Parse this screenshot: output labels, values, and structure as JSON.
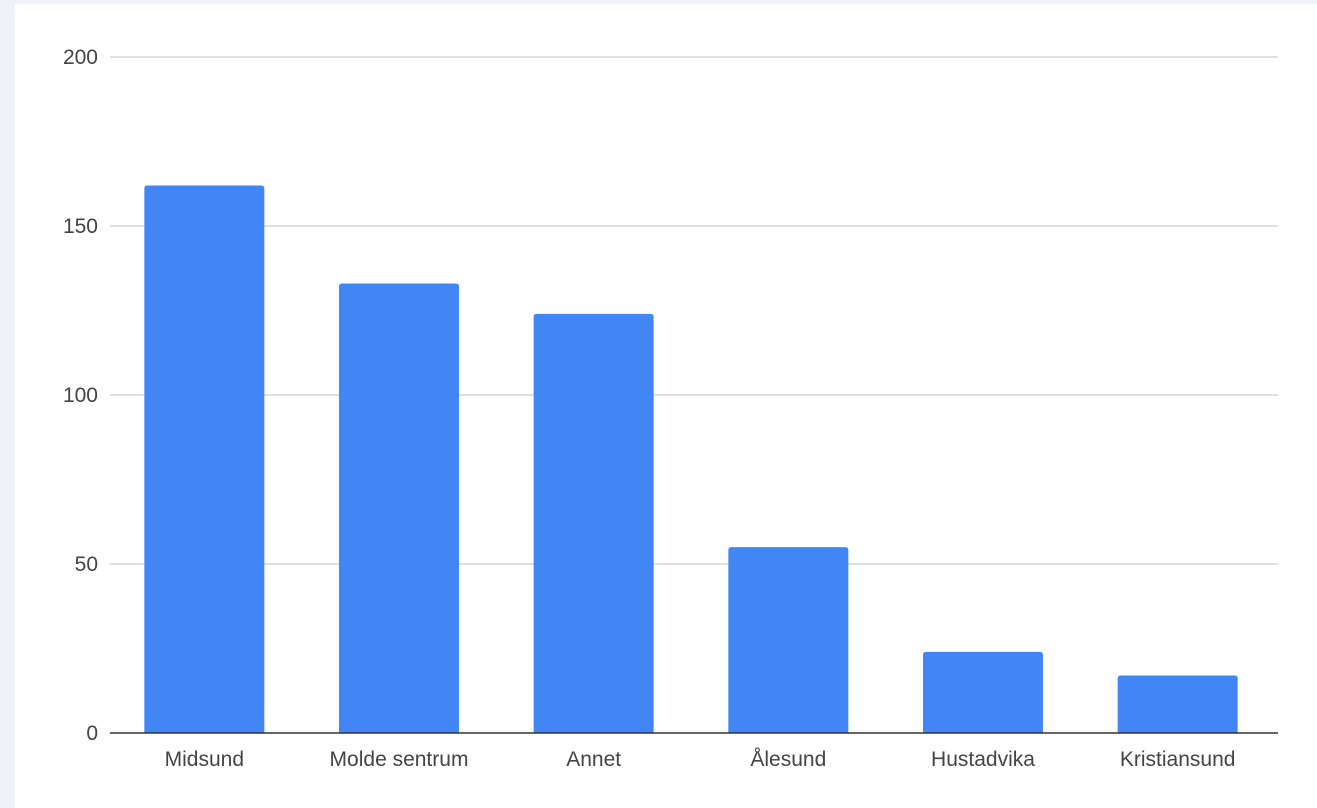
{
  "colors": {
    "bar": "#4285f4",
    "grid": "#cccccc",
    "axis": "#333333",
    "label": "#444444",
    "background": "#ffffff",
    "page_background": "#eef2f6"
  },
  "chart_data": {
    "type": "bar",
    "title": "",
    "xlabel": "",
    "ylabel": "",
    "categories": [
      "Midsund",
      "Molde sentrum",
      "Annet",
      "Ålesund",
      "Hustadvika",
      "Kristiansund"
    ],
    "values": [
      162,
      133,
      124,
      55,
      24,
      17
    ],
    "ylim": [
      0,
      200
    ],
    "yticks": [
      0,
      50,
      100,
      150,
      200
    ],
    "ytick_labels": [
      "0",
      "50",
      "100",
      "150",
      "200"
    ],
    "grid": true,
    "legend": "none"
  }
}
